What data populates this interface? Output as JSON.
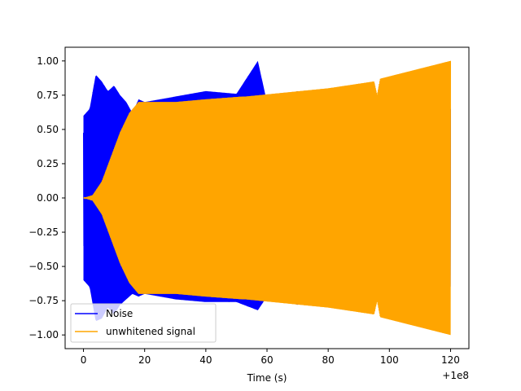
{
  "chart_data": {
    "type": "line",
    "title": "",
    "xlabel": "Time (s)",
    "ylabel": "",
    "x_offset_label": "+1e8",
    "xlim": [
      -6,
      126
    ],
    "ylim": [
      -1.1,
      1.1
    ],
    "xticks": [
      0,
      20,
      40,
      60,
      80,
      100,
      120
    ],
    "xtick_labels": [
      "0",
      "20",
      "40",
      "60",
      "80",
      "100",
      "120"
    ],
    "yticks": [
      -1.0,
      -0.75,
      -0.5,
      -0.25,
      0.0,
      0.25,
      0.5,
      0.75,
      1.0
    ],
    "ytick_labels": [
      "−1.00",
      "−0.75",
      "−0.50",
      "−0.25",
      "0.00",
      "0.25",
      "0.50",
      "0.75",
      "1.00"
    ],
    "grid": false,
    "legend_position": "lower-left",
    "series": [
      {
        "name": "Noise",
        "color": "#0000ff",
        "x_range": [
          0,
          120
        ],
        "envelope_x": [
          0,
          2,
          4,
          6,
          8,
          10,
          12,
          14,
          16,
          18,
          20,
          30,
          40,
          50,
          57,
          60,
          70,
          80,
          90,
          100,
          110,
          120
        ],
        "envelope_upper": [
          0.6,
          0.65,
          0.9,
          0.85,
          0.78,
          0.82,
          0.75,
          0.7,
          0.62,
          0.72,
          0.7,
          0.74,
          0.78,
          0.76,
          1.0,
          0.7,
          0.78,
          0.74,
          0.76,
          0.72,
          0.74,
          0.75
        ],
        "envelope_lower": [
          -0.6,
          -0.65,
          -0.9,
          -0.88,
          -0.8,
          -0.85,
          -0.78,
          -0.74,
          -0.7,
          -0.72,
          -0.7,
          -0.74,
          -0.76,
          -0.76,
          -0.82,
          -0.72,
          -0.78,
          -0.74,
          -0.76,
          -0.72,
          -0.74,
          -0.75
        ]
      },
      {
        "name": "unwhitened signal",
        "color": "#ffa500",
        "x_range": [
          0,
          120
        ],
        "envelope_x": [
          0,
          3,
          6,
          9,
          12,
          15,
          18,
          20,
          30,
          40,
          52,
          53,
          80,
          95,
          96,
          97,
          120
        ],
        "envelope_upper": [
          0.0,
          0.02,
          0.12,
          0.3,
          0.48,
          0.62,
          0.7,
          0.7,
          0.7,
          0.72,
          0.74,
          0.74,
          0.8,
          0.85,
          0.75,
          0.87,
          1.0
        ],
        "envelope_lower": [
          0.0,
          -0.02,
          -0.12,
          -0.3,
          -0.48,
          -0.62,
          -0.7,
          -0.7,
          -0.7,
          -0.72,
          -0.74,
          -0.74,
          -0.8,
          -0.85,
          -0.75,
          -0.87,
          -1.0
        ]
      }
    ]
  }
}
